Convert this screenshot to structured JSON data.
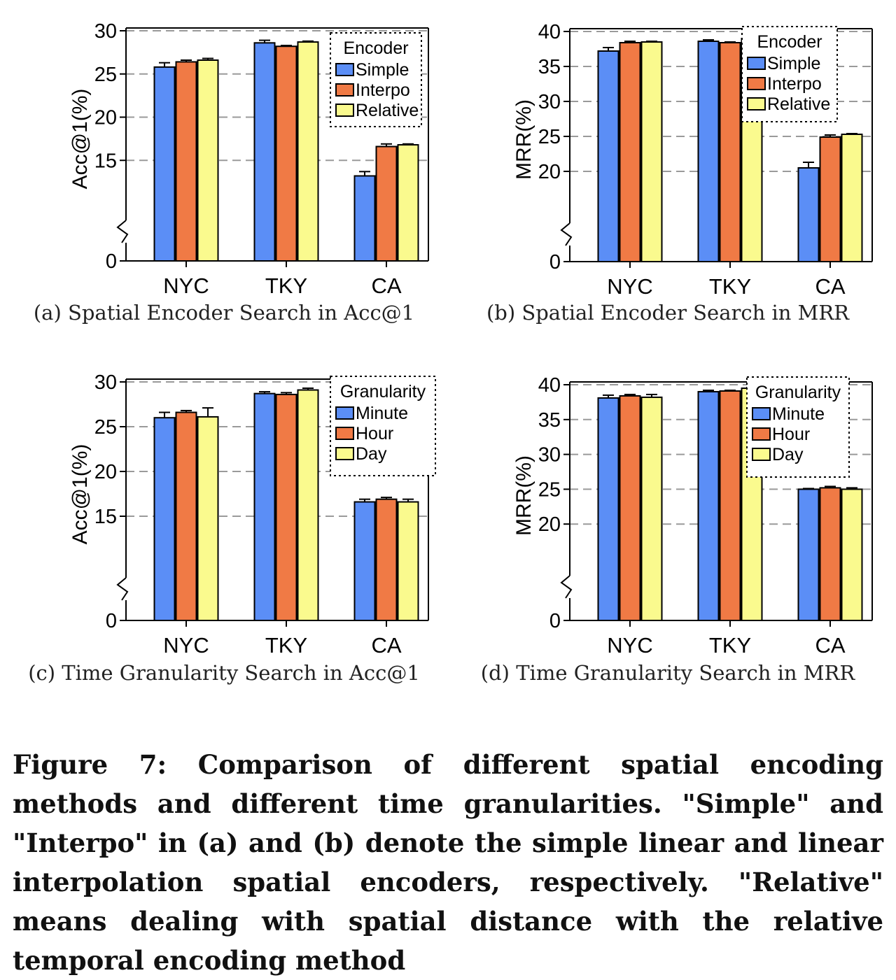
{
  "colors": {
    "blue": "#5b8ef6",
    "orange": "#f07a45",
    "yellow": "#fafa8e"
  },
  "chart_data": [
    {
      "type": "bar",
      "caption": "(a)  Spatial Encoder Search in Acc@1",
      "ylabel": "Acc@1(%)",
      "categories": [
        "NYC",
        "TKY",
        "CA"
      ],
      "yticks": [
        "0",
        "15",
        "20",
        "25",
        "30"
      ],
      "ylim": [
        10,
        30
      ],
      "axis_break": true,
      "grid": "dashed",
      "legend_title": "Encoder",
      "legend_position": "top-right",
      "series": [
        {
          "name": "Simple",
          "color": "#5b8ef6",
          "values": [
            25.8,
            28.6,
            13.2
          ],
          "errors": [
            0.5,
            0.3,
            0.5
          ]
        },
        {
          "name": "Interpo",
          "color": "#f07a45",
          "values": [
            26.4,
            28.2,
            16.6
          ],
          "errors": [
            0.2,
            0.1,
            0.3
          ]
        },
        {
          "name": "Relative",
          "color": "#fafa8e",
          "values": [
            26.6,
            28.7,
            16.8
          ],
          "errors": [
            0.2,
            0.1,
            0.1
          ]
        }
      ]
    },
    {
      "type": "bar",
      "caption": "(b)  Spatial Encoder Search in MRR",
      "ylabel": "MRR(%)",
      "categories": [
        "NYC",
        "TKY",
        "CA"
      ],
      "yticks": [
        "0",
        "20",
        "25",
        "30",
        "35",
        "40"
      ],
      "ylim": [
        15,
        40
      ],
      "axis_break": true,
      "grid": "dashed",
      "legend_title": "Encoder",
      "legend_position": "top-right",
      "series": [
        {
          "name": "Simple",
          "color": "#5b8ef6",
          "values": [
            37.2,
            38.6,
            20.5
          ],
          "errors": [
            0.5,
            0.2,
            0.8
          ]
        },
        {
          "name": "Interpo",
          "color": "#f07a45",
          "values": [
            38.4,
            38.4,
            24.9
          ],
          "errors": [
            0.2,
            0.1,
            0.3
          ]
        },
        {
          "name": "Relative",
          "color": "#fafa8e",
          "values": [
            38.5,
            39.0,
            25.3
          ],
          "errors": [
            0.1,
            0.1,
            0.1
          ]
        }
      ]
    },
    {
      "type": "bar",
      "caption": "(c)  Time Granularity Search in Acc@1",
      "ylabel": "Acc@1(%)",
      "categories": [
        "NYC",
        "TKY",
        "CA"
      ],
      "yticks": [
        "0",
        "15",
        "20",
        "25",
        "30"
      ],
      "ylim": [
        10,
        30
      ],
      "axis_break": true,
      "grid": "dashed",
      "legend_title": "Granularity",
      "legend_position": "top-right",
      "series": [
        {
          "name": "Minute",
          "color": "#5b8ef6",
          "values": [
            26.0,
            28.7,
            16.6
          ],
          "errors": [
            0.6,
            0.2,
            0.3
          ]
        },
        {
          "name": "Hour",
          "color": "#f07a45",
          "values": [
            26.6,
            28.6,
            16.9
          ],
          "errors": [
            0.2,
            0.2,
            0.2
          ]
        },
        {
          "name": "Day",
          "color": "#fafa8e",
          "values": [
            26.1,
            29.1,
            16.6
          ],
          "errors": [
            1.0,
            0.2,
            0.3
          ]
        }
      ]
    },
    {
      "type": "bar",
      "caption": "(d)  Time Granularity Search in MRR",
      "ylabel": "MRR(%)",
      "categories": [
        "NYC",
        "TKY",
        "CA"
      ],
      "yticks": [
        "0",
        "20",
        "25",
        "30",
        "35",
        "40"
      ],
      "ylim": [
        15,
        40
      ],
      "axis_break": true,
      "grid": "dashed",
      "legend_title": "Granularity",
      "legend_position": "top-right",
      "series": [
        {
          "name": "Minute",
          "color": "#5b8ef6",
          "values": [
            38.1,
            39.0,
            25.0
          ],
          "errors": [
            0.4,
            0.2,
            0.1
          ]
        },
        {
          "name": "Hour",
          "color": "#f07a45",
          "values": [
            38.4,
            39.1,
            25.2
          ],
          "errors": [
            0.2,
            0.1,
            0.2
          ]
        },
        {
          "name": "Day",
          "color": "#fafa8e",
          "values": [
            38.2,
            39.5,
            25.0
          ],
          "errors": [
            0.4,
            0.1,
            0.2
          ]
        }
      ]
    }
  ],
  "figure_caption": "Figure 7: Comparison of different spatial encoding methods and different time granularities. \"Simple\" and \"Interpo\" in (a) and (b) denote the simple linear and linear interpolation spatial encoders, respectively. \"Relative\" means dealing with spatial distance with the relative temporal encoding method"
}
